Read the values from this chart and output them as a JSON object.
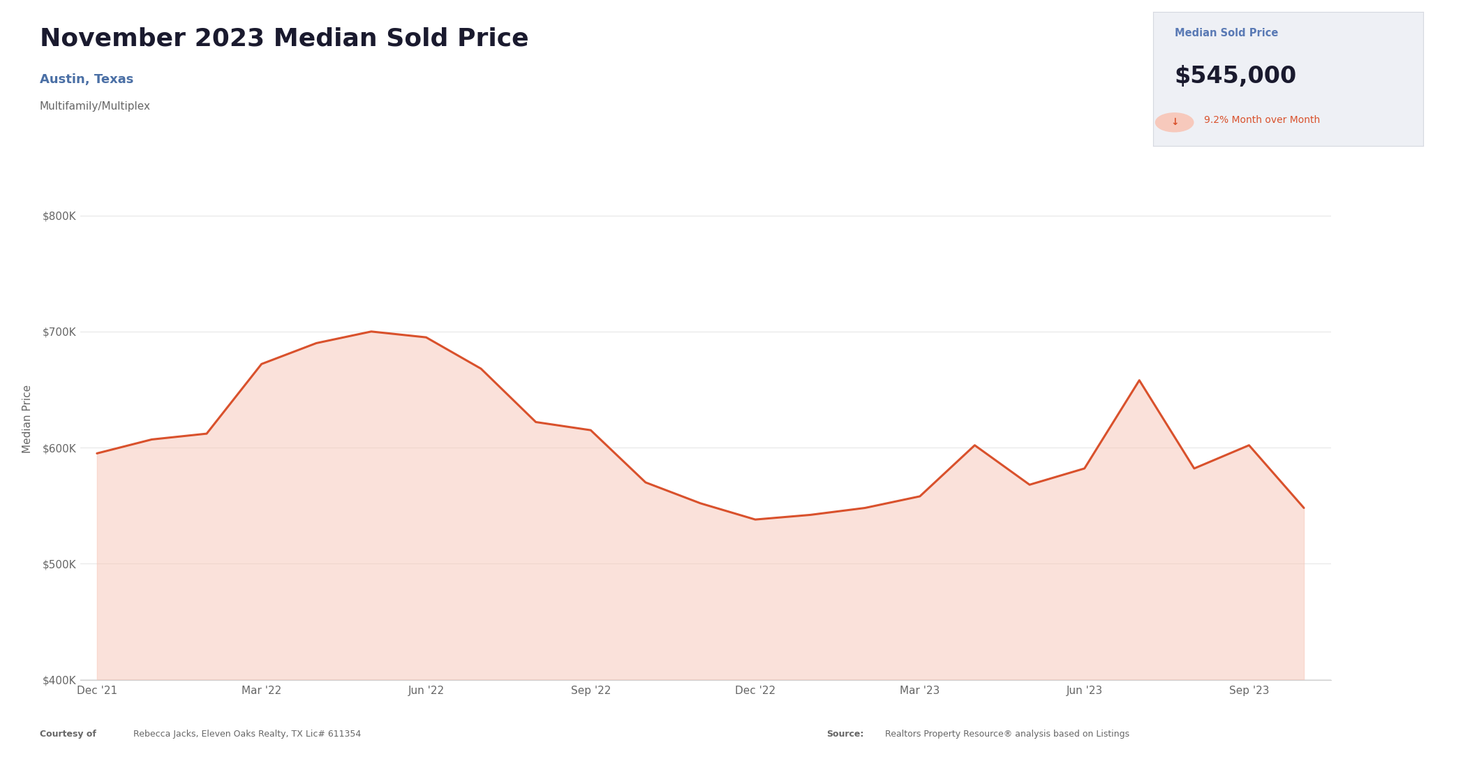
{
  "title": "November 2023 Median Sold Price",
  "subtitle": "Austin, Texas",
  "subtitle2": "Multifamily/Multiplex",
  "title_fontsize": 26,
  "subtitle_fontsize": 13,
  "box_label": "Median Sold Price",
  "box_value": "$545,000",
  "box_change": "9.2% Month over Month",
  "box_bg": "#eef0f5",
  "line_color": "#d9512c",
  "fill_color": "#f7c9bc",
  "bg_color": "#ffffff",
  "chart_bg": "#ffffff",
  "ylabel": "Median Price",
  "ylabel_fontsize": 11,
  "tick_fontsize": 11,
  "footer_left_bold": "Courtesy of",
  "footer_left_normal": " Rebecca Jacks, Eleven Oaks Realty, TX Lic# 611354",
  "footer_right_bold": "Source:",
  "footer_right_normal": " Realtors Property Resource® analysis based on Listings",
  "x_labels": [
    "Dec '21",
    "Mar '22",
    "Jun '22",
    "Sep '22",
    "Dec '22",
    "Mar '23",
    "Jun '23",
    "Sep '23"
  ],
  "x_values": [
    0,
    3,
    6,
    9,
    12,
    15,
    18,
    21
  ],
  "data_x": [
    0,
    1,
    2,
    3,
    4,
    5,
    6,
    7,
    8,
    9,
    10,
    11,
    12,
    13,
    14,
    15,
    16,
    17,
    18,
    19,
    20,
    21,
    22
  ],
  "data_y": [
    595000,
    607000,
    612000,
    672000,
    690000,
    700000,
    695000,
    668000,
    622000,
    615000,
    570000,
    552000,
    538000,
    542000,
    548000,
    558000,
    602000,
    568000,
    582000,
    658000,
    582000,
    602000,
    548000
  ],
  "ylim_min": 400000,
  "ylim_max": 850000,
  "yticks": [
    400000,
    500000,
    600000,
    700000,
    800000
  ],
  "ytick_labels": [
    "$400K",
    "$500K",
    "$600K",
    "$700K",
    "$800K"
  ],
  "grid_color": "#e8e8e8",
  "axis_border_color": "#d0d0d0",
  "chart_border_color": "#d5d8e0",
  "subtitle_color": "#4a6fa5",
  "tick_color": "#666666",
  "ylabel_color": "#666666",
  "title_color": "#1a1a2e",
  "box_label_color": "#5a7ab5",
  "box_value_color": "#1a1a2e",
  "box_change_color": "#d9512c",
  "footer_color": "#666666"
}
